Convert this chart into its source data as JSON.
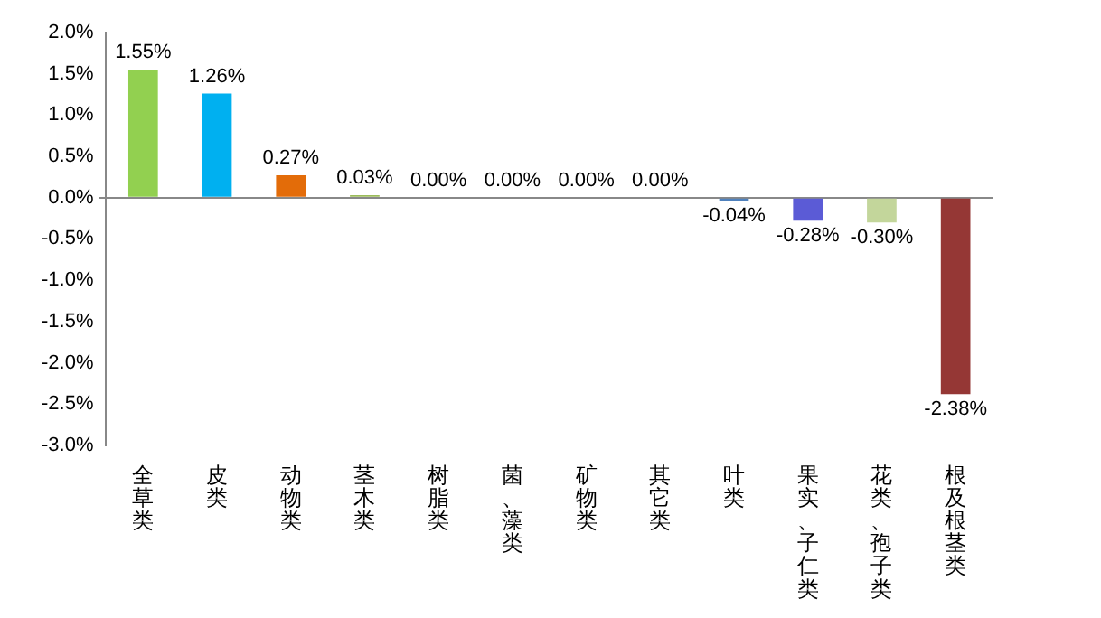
{
  "chart_data": {
    "type": "bar",
    "categories": [
      "全草类",
      "皮类",
      "动物类",
      "茎木类",
      "树脂类",
      "菌、藻类",
      "矿物类",
      "其它类",
      "叶类",
      "果实、子仁类",
      "花类、孢子类",
      "根及根茎类"
    ],
    "values": [
      1.55,
      1.26,
      0.27,
      0.03,
      0.0,
      0.0,
      0.0,
      0.0,
      -0.04,
      -0.28,
      -0.3,
      -2.38
    ],
    "colors": [
      "#92d050",
      "#00b0f0",
      "#e36c09",
      "#9bbb59",
      "#4bacc6",
      "#f79646",
      "#8064a2",
      "#c0504d",
      "#4f81bd",
      "#5b5bd6",
      "#c3d69b",
      "#953735"
    ],
    "value_labels": [
      "1.55%",
      "1.26%",
      "0.27%",
      "0.03%",
      "0.00%",
      "0.00%",
      "0.00%",
      "0.00%",
      "-0.04%",
      "-0.28%",
      "-0.30%",
      "-2.38%"
    ],
    "ylim": [
      -3.0,
      2.0
    ],
    "yticks": [
      {
        "value": -3.0,
        "label": "-3.0%"
      },
      {
        "value": -2.5,
        "label": "-2.5%"
      },
      {
        "value": -2.0,
        "label": "-2.0%"
      },
      {
        "value": -1.5,
        "label": "-1.5%"
      },
      {
        "value": -1.0,
        "label": "-1.0%"
      },
      {
        "value": -0.5,
        "label": "-0.5%"
      },
      {
        "value": 0.0,
        "label": "0.0%"
      },
      {
        "value": 0.5,
        "label": "0.5%"
      },
      {
        "value": 1.0,
        "label": "1.0%"
      },
      {
        "value": 1.5,
        "label": "1.5%"
      },
      {
        "value": 2.0,
        "label": "2.0%"
      }
    ],
    "legend": false
  }
}
